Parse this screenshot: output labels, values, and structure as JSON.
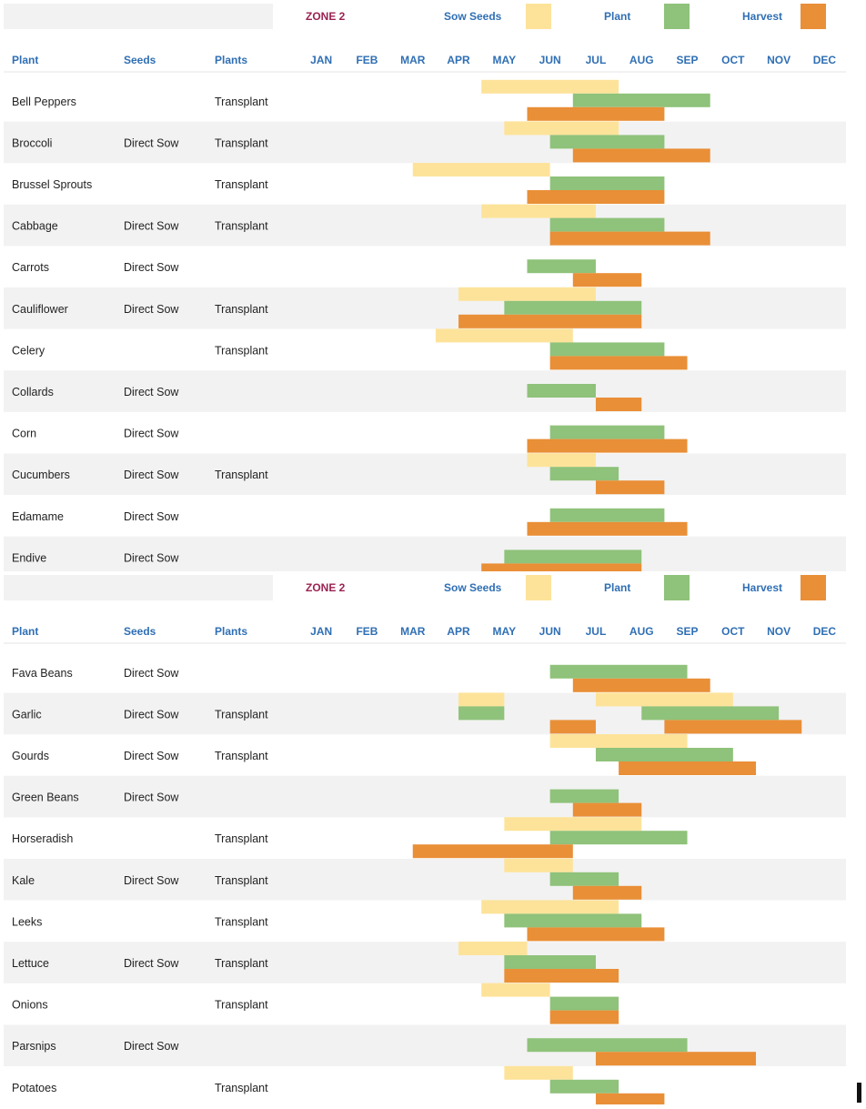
{
  "legend": {
    "zone_label": "ZONE 2",
    "sow_label": "Sow Seeds",
    "plant_label": "Plant",
    "harvest_label": "Harvest"
  },
  "colors": {
    "sow": "#fde39a",
    "plant": "#8fc27a",
    "harvest": "#e98f37",
    "stripe": "#f2f2f2",
    "header_text": "#2f6fb4",
    "zone_text": "#9b2252"
  },
  "columns": {
    "plant": "Plant",
    "seeds": "Seeds",
    "plants": "Plants"
  },
  "months": [
    "JAN",
    "FEB",
    "MAR",
    "APR",
    "MAY",
    "JUN",
    "JUL",
    "AUG",
    "SEP",
    "OCT",
    "NOV",
    "DEC"
  ],
  "chart_data": [
    {
      "type": "gantt",
      "title": "",
      "x_unit": "month (start inclusive, end exclusive; e.g. 5.0 = start of MAY)",
      "series": [
        "Sow Seeds",
        "Plant",
        "Harvest"
      ],
      "rows": [
        {
          "name": "Bell Peppers",
          "seeds": "",
          "plants": "Transplant",
          "sow": [
            5.0,
            8.0
          ],
          "plant": [
            7.0,
            10.0
          ],
          "harvest": [
            6.0,
            9.0
          ]
        },
        {
          "name": "Broccoli",
          "seeds": "Direct Sow",
          "plants": "Transplant",
          "sow": [
            5.5,
            8.0
          ],
          "plant": [
            6.5,
            9.0
          ],
          "harvest": [
            7.0,
            10.0
          ]
        },
        {
          "name": "Brussel Sprouts",
          "seeds": "",
          "plants": "Transplant",
          "sow": [
            3.5,
            6.5
          ],
          "plant": [
            6.5,
            9.0
          ],
          "harvest": [
            6.0,
            9.0
          ]
        },
        {
          "name": "Cabbage",
          "seeds": "Direct Sow",
          "plants": "Transplant",
          "sow": [
            5.0,
            7.5
          ],
          "plant": [
            6.5,
            9.0
          ],
          "harvest": [
            6.5,
            10.0
          ]
        },
        {
          "name": "Carrots",
          "seeds": "Direct Sow",
          "plants": "",
          "sow": null,
          "plant": [
            6.0,
            7.5
          ],
          "harvest": [
            7.0,
            8.5
          ]
        },
        {
          "name": "Cauliflower",
          "seeds": "Direct Sow",
          "plants": "Transplant",
          "sow": [
            4.5,
            7.5
          ],
          "plant": [
            5.5,
            8.5
          ],
          "harvest": [
            4.5,
            8.5
          ]
        },
        {
          "name": "Celery",
          "seeds": "",
          "plants": "Transplant",
          "sow": [
            4.0,
            7.0
          ],
          "plant": [
            6.5,
            9.0
          ],
          "harvest": [
            6.5,
            9.5
          ]
        },
        {
          "name": "Collards",
          "seeds": "Direct Sow",
          "plants": "",
          "sow": null,
          "plant": [
            6.0,
            7.5
          ],
          "harvest": [
            7.5,
            8.5
          ]
        },
        {
          "name": "Corn",
          "seeds": "Direct Sow",
          "plants": "",
          "sow": null,
          "plant": [
            6.5,
            9.0
          ],
          "harvest": [
            6.0,
            9.5
          ]
        },
        {
          "name": "Cucumbers",
          "seeds": "Direct Sow",
          "plants": "Transplant",
          "sow": [
            6.0,
            7.5
          ],
          "plant": [
            6.5,
            8.0
          ],
          "harvest": [
            7.5,
            9.0
          ]
        },
        {
          "name": "Edamame",
          "seeds": "Direct Sow",
          "plants": "",
          "sow": null,
          "plant": [
            6.5,
            9.0
          ],
          "harvest": [
            6.0,
            9.5
          ]
        },
        {
          "name": "Endive",
          "seeds": "Direct Sow",
          "plants": "",
          "sow": null,
          "plant": [
            5.5,
            8.5
          ],
          "harvest": [
            5.0,
            8.5
          ]
        }
      ]
    },
    {
      "type": "gantt",
      "title": "",
      "x_unit": "month (start inclusive, end exclusive; e.g. 5.0 = start of MAY)",
      "series": [
        "Sow Seeds",
        "Plant",
        "Harvest"
      ],
      "rows": [
        {
          "name": "Fava Beans",
          "seeds": "Direct Sow",
          "plants": "",
          "sow": null,
          "plant": [
            6.5,
            9.5
          ],
          "harvest": [
            7.0,
            10.0
          ]
        },
        {
          "name": "Garlic",
          "seeds": "Direct Sow",
          "plants": "Transplant",
          "sow": [
            [
              4.5,
              5.5
            ],
            [
              7.5,
              10.5
            ]
          ],
          "plant": [
            [
              4.5,
              5.5
            ],
            [
              8.5,
              11.5
            ]
          ],
          "harvest": [
            [
              6.5,
              7.5
            ],
            [
              9.0,
              12.0
            ]
          ]
        },
        {
          "name": "Gourds",
          "seeds": "Direct Sow",
          "plants": "Transplant",
          "sow": [
            6.5,
            9.5
          ],
          "plant": [
            7.5,
            10.5
          ],
          "harvest": [
            8.0,
            11.0
          ]
        },
        {
          "name": "Green Beans",
          "seeds": "Direct Sow",
          "plants": "",
          "sow": null,
          "plant": [
            6.5,
            8.0
          ],
          "harvest": [
            7.0,
            8.5
          ]
        },
        {
          "name": "Horseradish",
          "seeds": "",
          "plants": "Transplant",
          "sow": [
            5.5,
            8.5
          ],
          "plant": [
            6.5,
            9.5
          ],
          "harvest": [
            3.5,
            7.0
          ]
        },
        {
          "name": "Kale",
          "seeds": "Direct Sow",
          "plants": "Transplant",
          "sow": [
            5.5,
            7.0
          ],
          "plant": [
            6.5,
            8.0
          ],
          "harvest": [
            7.0,
            8.5
          ]
        },
        {
          "name": "Leeks",
          "seeds": "",
          "plants": "Transplant",
          "sow": [
            5.0,
            8.0
          ],
          "plant": [
            5.5,
            8.5
          ],
          "harvest": [
            6.0,
            9.0
          ]
        },
        {
          "name": "Lettuce",
          "seeds": "Direct Sow",
          "plants": "Transplant",
          "sow": [
            4.5,
            6.0
          ],
          "plant": [
            5.5,
            7.5
          ],
          "harvest": [
            5.5,
            8.0
          ]
        },
        {
          "name": "Onions",
          "seeds": "",
          "plants": "Transplant",
          "sow": [
            5.0,
            6.5
          ],
          "plant": [
            6.5,
            8.0
          ],
          "harvest": [
            6.5,
            8.0
          ]
        },
        {
          "name": "Parsnips",
          "seeds": "Direct Sow",
          "plants": "",
          "sow": null,
          "plant": [
            6.0,
            9.5
          ],
          "harvest": [
            7.5,
            11.0
          ]
        },
        {
          "name": "Potatoes",
          "seeds": "",
          "plants": "Transplant",
          "sow": [
            5.5,
            7.0
          ],
          "plant": [
            6.5,
            8.0
          ],
          "harvest": [
            7.5,
            9.0
          ]
        }
      ]
    }
  ]
}
